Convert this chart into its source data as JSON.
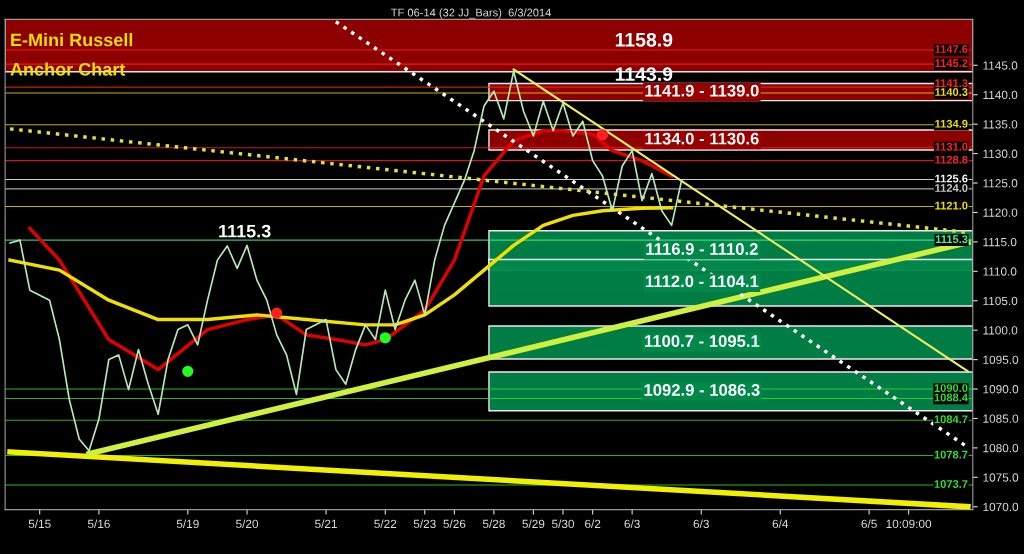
{
  "chart_data": {
    "type": "line",
    "title": "TF 06-14 (32 JJ_Bars)  6/3/2014",
    "categories": [
      null,
      null,
      null,
      "5/15",
      null,
      null,
      null,
      null,
      null,
      "5/16",
      null,
      null,
      null,
      null,
      null,
      null,
      null,
      null,
      "5/19",
      null,
      null,
      null,
      null,
      null,
      "5/20",
      null,
      null,
      null,
      null,
      null,
      null,
      null,
      "5/21",
      null,
      null,
      null,
      null,
      null,
      "5/22",
      null,
      null,
      null,
      "5/23",
      null,
      null,
      "5/26",
      null,
      null,
      null,
      "5/28",
      null,
      null,
      null,
      "5/29",
      null,
      null,
      "5/30",
      null,
      null,
      "6/2",
      null,
      null,
      null,
      "6/3",
      null,
      null,
      null,
      null,
      null,
      null,
      "6/3",
      null,
      null,
      null,
      null,
      null,
      null,
      null,
      "6/4",
      null,
      null,
      null,
      null,
      null,
      null,
      null,
      null,
      "6/5",
      null,
      null,
      null,
      "10:09:00",
      null,
      null,
      null,
      null,
      null,
      null
    ],
    "ylim": [
      1069.5,
      1152.8
    ],
    "yticks": [
      {
        "value": 1070,
        "label": "1070.0"
      },
      {
        "value": 1075,
        "label": "1075.0"
      },
      {
        "value": 1080,
        "label": "1080.0"
      },
      {
        "value": 1085,
        "label": "1085.0"
      },
      {
        "value": 1090,
        "label": "1090.0"
      },
      {
        "value": 1095,
        "label": "1095.0"
      },
      {
        "value": 1100,
        "label": "1100.0"
      },
      {
        "value": 1105,
        "label": "1105.0"
      },
      {
        "value": 1110,
        "label": "1110.0"
      },
      {
        "value": 1115,
        "label": "1115.0"
      },
      {
        "value": 1120,
        "label": "1120.0"
      },
      {
        "value": 1125,
        "label": "1125.0"
      },
      {
        "value": 1130,
        "label": "1130.0"
      },
      {
        "value": 1135,
        "label": "1135.0"
      },
      {
        "value": 1140,
        "label": "1140.0"
      },
      {
        "value": 1145,
        "label": "1145.0"
      }
    ],
    "grid": false,
    "bands": [
      {
        "axis": "y",
        "from": 1143.9,
        "to": 1152.8,
        "label": null,
        "color": "#990000"
      },
      {
        "axis": "y",
        "from": 1139.0,
        "to": 1141.9,
        "label": "1141.9 - 1139.0",
        "color": "#990000"
      },
      {
        "axis": "y",
        "from": 1130.6,
        "to": 1134.0,
        "label": "1134.0 - 1130.6",
        "color": "#990000"
      },
      {
        "axis": "y",
        "from": 1110.2,
        "to": 1116.9,
        "label": "1116.9 - 1110.2",
        "color": "#00884a"
      },
      {
        "axis": "y",
        "from": 1104.1,
        "to": 1112.0,
        "label": "1112.0 - 1104.1",
        "color": "#00884a"
      },
      {
        "axis": "y",
        "from": 1095.1,
        "to": 1100.7,
        "label": "1100.7 - 1095.1",
        "color": "#00884a"
      },
      {
        "axis": "y",
        "from": 1086.3,
        "to": 1092.9,
        "label": "1092.9 - 1086.3",
        "color": "#00884a"
      }
    ],
    "ref_lines": [
      {
        "axis": "y",
        "value": 1147.6,
        "label": "1147.6",
        "color": "#ff2020"
      },
      {
        "axis": "y",
        "value": 1145.2,
        "label": "1145.2",
        "color": "#ff2020"
      },
      {
        "axis": "y",
        "value": 1141.3,
        "label": "1141.3",
        "color": "#ff2020"
      },
      {
        "axis": "y",
        "value": 1140.3,
        "label": "1140.3",
        "color": "#f0e000"
      },
      {
        "axis": "y",
        "value": 1134.9,
        "label": "1134.9",
        "color": "#f0e000"
      },
      {
        "axis": "y",
        "value": 1131.0,
        "label": "1131.0",
        "color": "#ff2020"
      },
      {
        "axis": "y",
        "value": 1128.8,
        "label": "1128.8",
        "color": "#ff2020"
      },
      {
        "axis": "y",
        "value": 1125.6,
        "label": "1125.6",
        "color": "#ffffff"
      },
      {
        "axis": "y",
        "value": 1124.0,
        "label": "1124.0",
        "color": "#cccccc"
      },
      {
        "axis": "y",
        "value": 1121.0,
        "label": "1121.0",
        "color": "#f0e000"
      },
      {
        "axis": "y",
        "value": 1115.3,
        "label": "1115.3",
        "color": "#40f090"
      },
      {
        "axis": "y",
        "value": 1090.0,
        "label": "1090.0",
        "color": "#30e030"
      },
      {
        "axis": "y",
        "value": 1088.4,
        "label": "1088.4",
        "color": "#30e030"
      },
      {
        "axis": "y",
        "value": 1084.7,
        "label": "1084.7",
        "color": "#30e030"
      },
      {
        "axis": "y",
        "value": 1078.7,
        "label": "1078.7",
        "color": "#30e030"
      },
      {
        "axis": "y",
        "value": 1073.7,
        "label": "1073.7",
        "color": "#30e030"
      }
    ],
    "annotations": [
      "E-Mini Russell",
      "Anchor Chart",
      "1158.9",
      "1143.9",
      "1115.3"
    ],
    "series": [
      {
        "color": "#b8e8b8",
        "values": [
          1114.8,
          1115.3,
          1106.8,
          null,
          1105.1,
          1098.4,
          1088.2,
          1081.5,
          1079.5,
          1084.9,
          1095.0,
          1095.8,
          1089.9,
          1096.7,
          1090.8,
          1085.7,
          1095.0,
          1100.1,
          1100.9,
          1097.5,
          1105.1,
          1111.9,
          1114.3,
          1110.5,
          1114.4,
          1108.5,
          1105.1,
          1099.2,
          1095.8,
          1089.1,
          1100.1,
          null,
          1101.8,
          1093.3,
          1090.8,
          1096.7,
          1100.9,
          1098.4,
          1106.8,
          1100.1,
          1105.1,
          1108.5,
          1102.6,
          1111.9,
          1117.8,
          null,
          1125.4,
          1130.5,
          1138.1,
          1140.6,
          1135.9,
          1144.0,
          1137.2,
          1133.0,
          1138.9,
          1133.9,
          1138.6,
          1133.0,
          1135.5,
          1128.8,
          1126.2,
          1120.3,
          1127.9,
          1130.5,
          1122.0,
          1126.6,
          1120.3,
          1117.8,
          1125.4,
          null,
          null,
          null,
          null,
          null,
          null,
          null,
          null,
          null,
          null,
          null,
          null,
          null,
          null,
          null,
          null,
          null,
          null,
          null,
          null,
          null,
          null,
          null,
          null,
          null,
          null,
          null,
          null,
          null
        ]
      },
      {
        "color": "#e00000",
        "values": [
          null,
          null,
          1117.3,
          null,
          null,
          1111.9,
          null,
          null,
          null,
          null,
          1098.4,
          null,
          null,
          null,
          null,
          1093.3,
          null,
          null,
          null,
          null,
          1100.1,
          null,
          null,
          null,
          1101.8,
          null,
          null,
          1102.6,
          null,
          null,
          1099.2,
          null,
          null,
          1098.4,
          null,
          null,
          1097.5,
          null,
          1098.4,
          null,
          null,
          null,
          1103.4,
          null,
          null,
          1111.9,
          null,
          null,
          1126.2,
          null,
          null,
          1132.2,
          null,
          null,
          1133.9,
          null,
          1133.9,
          null,
          null,
          1133.3,
          null,
          1130.5,
          null,
          null,
          1128.8,
          null,
          null,
          1126.2,
          null,
          null,
          null,
          null,
          null,
          null,
          null,
          null,
          null,
          null,
          null,
          null,
          null,
          null,
          null,
          null,
          null,
          null,
          null,
          null,
          null,
          null,
          null,
          null,
          null,
          null,
          null,
          null,
          null,
          null
        ]
      },
      {
        "color": "#f0e000",
        "values": [
          1111.9,
          null,
          null,
          null,
          null,
          1110.2,
          null,
          null,
          null,
          null,
          1105.1,
          null,
          null,
          null,
          null,
          1101.8,
          null,
          null,
          null,
          null,
          1101.8,
          null,
          null,
          null,
          null,
          1102.6,
          null,
          null,
          null,
          null,
          1101.8,
          null,
          null,
          null,
          null,
          null,
          1100.9,
          null,
          null,
          1100.9,
          null,
          null,
          1102.6,
          null,
          null,
          1106.0,
          null,
          null,
          1110.2,
          null,
          null,
          1114.4,
          null,
          null,
          1117.8,
          null,
          null,
          1119.5,
          null,
          null,
          1120.3,
          null,
          null,
          null,
          1120.7,
          null,
          null,
          1120.8,
          null,
          null,
          null,
          null,
          null,
          null,
          null,
          null,
          null,
          null,
          null,
          null,
          null,
          null,
          null,
          null,
          null,
          null,
          null,
          null,
          null,
          null,
          null,
          null,
          null,
          null,
          null,
          null,
          null,
          null
        ]
      },
      {
        "color": "#f0f000",
        "values": [
          1079.3,
          null,
          null,
          null,
          null,
          null,
          null,
          null,
          null,
          null,
          null,
          null,
          null,
          null,
          null,
          null,
          null,
          null,
          null,
          null,
          null,
          null,
          null,
          null,
          null,
          null,
          null,
          null,
          null,
          null,
          null,
          null,
          null,
          null,
          null,
          null,
          null,
          null,
          null,
          null,
          null,
          null,
          null,
          null,
          null,
          null,
          null,
          null,
          null,
          null,
          null,
          null,
          null,
          null,
          null,
          null,
          null,
          null,
          null,
          null,
          null,
          null,
          null,
          null,
          null,
          null,
          null,
          null,
          null,
          null,
          null,
          null,
          null,
          null,
          null,
          null,
          null,
          null,
          null,
          null,
          null,
          null,
          null,
          null,
          null,
          null,
          null,
          null,
          null,
          null,
          null,
          null,
          null,
          null,
          null,
          null,
          null,
          1070.0
        ]
      },
      {
        "color": "#d0f040",
        "values": [
          null,
          null,
          null,
          null,
          null,
          null,
          null,
          null,
          1079.0,
          null,
          null,
          null,
          null,
          null,
          null,
          null,
          null,
          null,
          null,
          null,
          null,
          null,
          null,
          null,
          null,
          null,
          null,
          null,
          null,
          null,
          null,
          null,
          null,
          null,
          null,
          null,
          null,
          null,
          null,
          null,
          null,
          null,
          null,
          null,
          null,
          null,
          null,
          null,
          null,
          null,
          null,
          null,
          null,
          null,
          null,
          null,
          null,
          null,
          null,
          null,
          null,
          null,
          null,
          null,
          null,
          null,
          null,
          null,
          null,
          null,
          null,
          null,
          null,
          null,
          null,
          null,
          null,
          null,
          null,
          null,
          null,
          null,
          null,
          null,
          null,
          null,
          null,
          null,
          null,
          null,
          null,
          null,
          null,
          null,
          null,
          null,
          null,
          1114.9
        ]
      },
      {
        "color": "#f0f060",
        "values": [
          null,
          null,
          null,
          null,
          null,
          null,
          null,
          null,
          null,
          null,
          null,
          null,
          null,
          null,
          null,
          null,
          null,
          null,
          null,
          null,
          null,
          null,
          null,
          null,
          null,
          null,
          null,
          null,
          null,
          null,
          null,
          null,
          null,
          null,
          null,
          null,
          null,
          null,
          null,
          null,
          null,
          null,
          null,
          null,
          null,
          null,
          null,
          null,
          null,
          null,
          null,
          1144.3,
          null,
          null,
          null,
          null,
          null,
          null,
          null,
          null,
          null,
          null,
          null,
          null,
          null,
          null,
          null,
          null,
          null,
          null,
          null,
          null,
          null,
          null,
          null,
          null,
          null,
          null,
          null,
          null,
          null,
          null,
          null,
          null,
          null,
          null,
          null,
          null,
          null,
          null,
          null,
          null,
          null,
          null,
          null,
          null,
          null,
          1093.0
        ]
      },
      {
        "color": "#ffffff",
        "line_style": "dotted",
        "values": [
          null,
          null,
          null,
          null,
          null,
          null,
          null,
          null,
          null,
          null,
          null,
          null,
          null,
          null,
          null,
          null,
          null,
          null,
          null,
          null,
          null,
          null,
          null,
          null,
          null,
          null,
          null,
          null,
          null,
          null,
          null,
          null,
          null,
          1152.4,
          null,
          null,
          null,
          null,
          null,
          null,
          null,
          null,
          null,
          null,
          null,
          null,
          null,
          null,
          null,
          null,
          null,
          null,
          null,
          null,
          null,
          null,
          null,
          null,
          null,
          null,
          null,
          null,
          null,
          null,
          null,
          null,
          null,
          null,
          null,
          null,
          null,
          null,
          null,
          null,
          null,
          null,
          null,
          null,
          null,
          null,
          null,
          null,
          null,
          null,
          null,
          null,
          null,
          null,
          null,
          null,
          null,
          null,
          null,
          null,
          null,
          null,
          null,
          1080.1
        ]
      },
      {
        "color": "#e0e040",
        "line_style": "dotted",
        "values": [
          1134.2,
          null,
          null,
          null,
          null,
          null,
          null,
          null,
          null,
          null,
          null,
          null,
          null,
          null,
          null,
          null,
          null,
          null,
          null,
          null,
          null,
          null,
          null,
          null,
          null,
          null,
          null,
          null,
          null,
          null,
          null,
          null,
          null,
          null,
          null,
          null,
          null,
          null,
          null,
          null,
          null,
          null,
          null,
          null,
          null,
          null,
          null,
          null,
          null,
          null,
          null,
          null,
          null,
          null,
          null,
          null,
          null,
          null,
          null,
          null,
          null,
          null,
          null,
          null,
          null,
          null,
          null,
          null,
          null,
          null,
          null,
          null,
          null,
          null,
          null,
          null,
          null,
          null,
          null,
          null,
          null,
          null,
          null,
          null,
          null,
          null,
          null,
          null,
          null,
          null,
          null,
          null,
          null,
          null,
          null,
          null,
          null,
          1116.6
        ]
      },
      {
        "type": "scatter",
        "color": "#20ff20",
        "values": [
          null,
          null,
          null,
          null,
          null,
          null,
          null,
          null,
          null,
          null,
          null,
          null,
          null,
          null,
          null,
          null,
          null,
          null,
          1093.0,
          null,
          null,
          null,
          null,
          null,
          null,
          null,
          null,
          null,
          null,
          null,
          null,
          null,
          null,
          null,
          null,
          null,
          null,
          null,
          1098.7,
          null,
          null,
          null,
          null,
          null,
          null,
          null,
          null,
          null,
          null,
          null,
          null,
          null,
          null,
          null,
          null,
          null,
          null,
          null,
          null,
          null,
          null,
          null,
          null,
          null,
          null,
          null,
          null,
          null,
          null,
          null,
          null,
          null,
          null,
          null,
          null,
          null,
          null,
          null,
          null,
          null,
          null,
          null,
          null,
          null,
          null,
          null,
          null,
          null,
          null,
          null,
          null,
          null,
          null,
          null,
          null,
          null,
          null,
          null
        ]
      },
      {
        "type": "scatter",
        "color": "#ff2020",
        "values": [
          null,
          null,
          null,
          null,
          null,
          null,
          null,
          null,
          null,
          null,
          null,
          null,
          null,
          null,
          null,
          null,
          null,
          null,
          null,
          null,
          null,
          null,
          null,
          null,
          null,
          null,
          null,
          1102.9,
          null,
          null,
          null,
          null,
          null,
          null,
          null,
          null,
          null,
          null,
          null,
          null,
          null,
          null,
          null,
          null,
          null,
          null,
          null,
          null,
          null,
          null,
          null,
          null,
          null,
          null,
          null,
          null,
          null,
          null,
          null,
          null,
          1133.2,
          null,
          null,
          null,
          null,
          null,
          null,
          null,
          null,
          null,
          null,
          null,
          null,
          null,
          null,
          null,
          null,
          null,
          null,
          null,
          null,
          null,
          null,
          null,
          null,
          null,
          null,
          null,
          null,
          null,
          null,
          null,
          null,
          null,
          null,
          null,
          null,
          null
        ]
      }
    ]
  }
}
